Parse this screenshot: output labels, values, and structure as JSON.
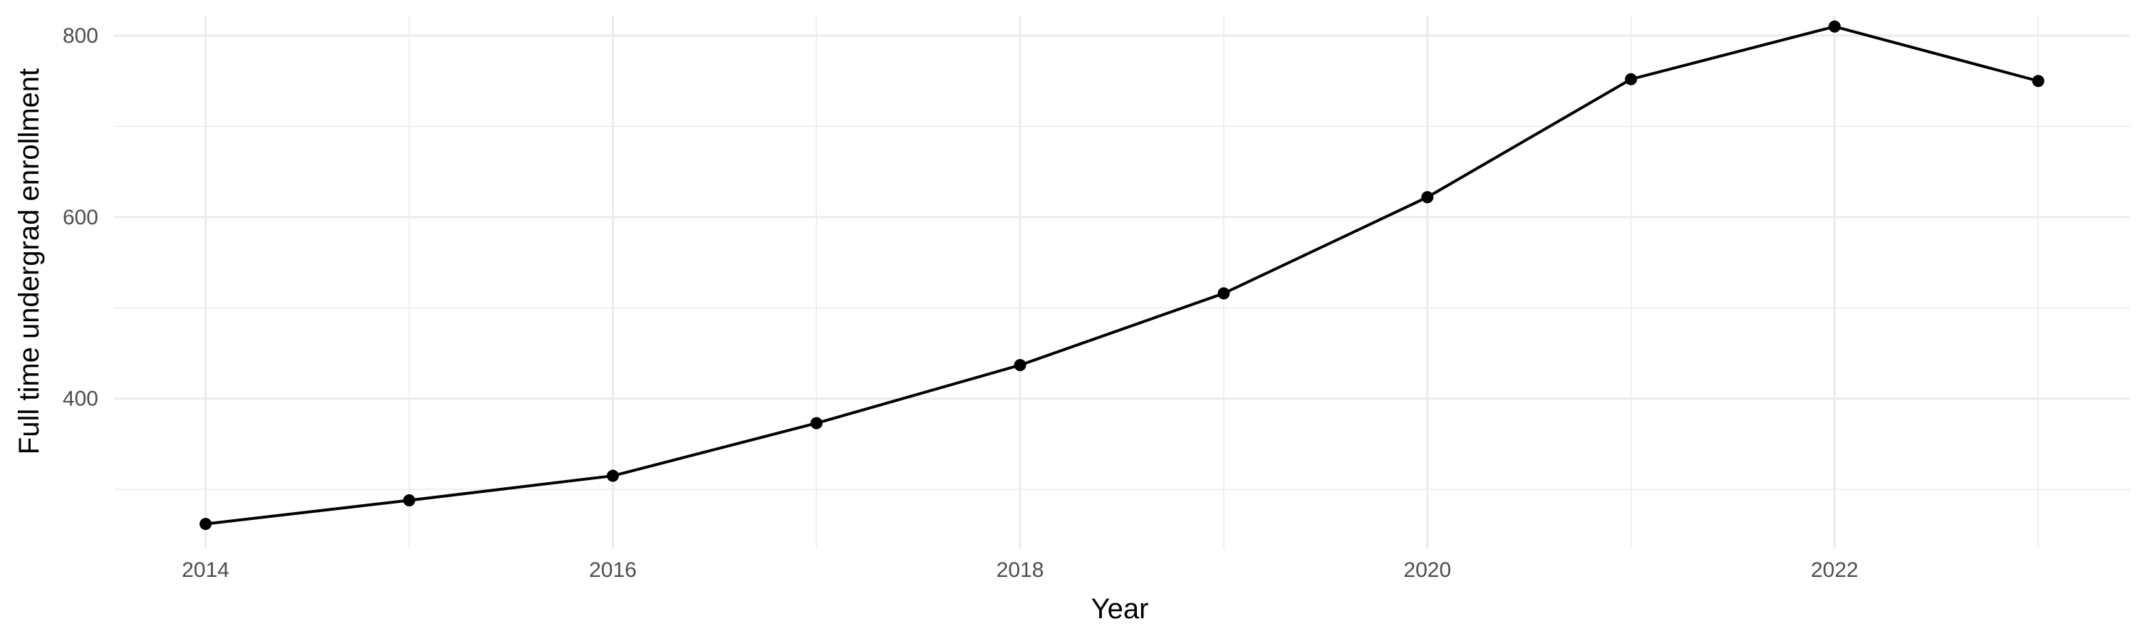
{
  "chart_data": {
    "type": "line",
    "title": "",
    "xlabel": "Year",
    "ylabel": "Full time undergrad enrollment",
    "x": [
      2014,
      2015,
      2016,
      2017,
      2018,
      2019,
      2020,
      2021,
      2022,
      2023
    ],
    "series": [
      {
        "values": [
          262,
          288,
          315,
          373,
          437,
          516,
          622,
          752,
          810,
          750
        ]
      }
    ],
    "x_ticks": [
      2014,
      2016,
      2018,
      2020,
      2022
    ],
    "y_ticks": [
      400,
      600,
      800
    ],
    "xlim": [
      2013.55,
      2023.45
    ],
    "ylim": [
      235,
      822
    ],
    "grid": true,
    "legend": "none",
    "line_color": "#000000",
    "point_color": "#000000",
    "grid_color": "#ebebeb"
  }
}
